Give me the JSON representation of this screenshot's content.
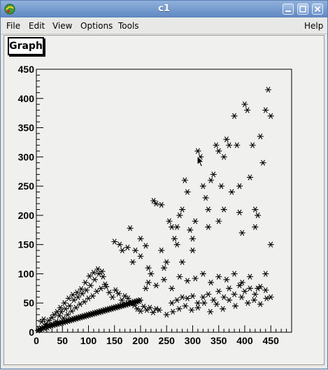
{
  "window": {
    "title": "c1",
    "icon": "root-app-icon",
    "controls": [
      "minimize-icon",
      "maximize-icon",
      "close-icon"
    ]
  },
  "menu": {
    "file": "File",
    "edit": "Edit",
    "view": "View",
    "options": "Options",
    "tools": "Tools",
    "help": "Help"
  },
  "chart_data": {
    "type": "scatter",
    "title": "Graph",
    "marker": "asterisk",
    "marker_color": "#000000",
    "xlim": [
      0,
      490
    ],
    "ylim": [
      0,
      450
    ],
    "xticks": [
      0,
      50,
      100,
      150,
      200,
      250,
      300,
      350,
      400,
      450
    ],
    "yticks": [
      0,
      50,
      100,
      150,
      200,
      250,
      300,
      350,
      400,
      450
    ],
    "xtick_labels": [
      "0",
      "50",
      "100",
      "150",
      "200",
      "250",
      "300",
      "350",
      "400",
      "450"
    ],
    "ytick_labels": [
      "0",
      "50",
      "100",
      "150",
      "200",
      "250",
      "300",
      "350",
      "400",
      "450"
    ],
    "series": [
      {
        "points": [
          [
            3,
            3
          ],
          [
            5,
            5
          ],
          [
            7,
            4
          ],
          [
            9,
            7
          ],
          [
            11,
            6
          ],
          [
            13,
            8
          ],
          [
            15,
            7
          ],
          [
            17,
            9
          ],
          [
            19,
            10
          ],
          [
            21,
            8
          ],
          [
            23,
            11
          ],
          [
            25,
            10
          ],
          [
            27,
            12
          ],
          [
            29,
            11
          ],
          [
            31,
            13
          ],
          [
            33,
            12
          ],
          [
            35,
            14
          ],
          [
            37,
            13
          ],
          [
            39,
            15
          ],
          [
            41,
            14
          ],
          [
            43,
            16
          ],
          [
            45,
            15
          ],
          [
            47,
            17
          ],
          [
            49,
            16
          ],
          [
            51,
            18
          ],
          [
            53,
            17
          ],
          [
            55,
            19
          ],
          [
            57,
            18
          ],
          [
            59,
            20
          ],
          [
            61,
            19
          ],
          [
            63,
            21
          ],
          [
            65,
            20
          ],
          [
            67,
            22
          ],
          [
            69,
            21
          ],
          [
            71,
            23
          ],
          [
            73,
            22
          ],
          [
            75,
            24
          ],
          [
            77,
            23
          ],
          [
            79,
            25
          ],
          [
            81,
            24
          ],
          [
            83,
            26
          ],
          [
            85,
            25
          ],
          [
            87,
            27
          ],
          [
            89,
            26
          ],
          [
            91,
            28
          ],
          [
            93,
            27
          ],
          [
            95,
            29
          ],
          [
            97,
            28
          ],
          [
            99,
            30
          ],
          [
            101,
            29
          ],
          [
            103,
            31
          ],
          [
            105,
            30
          ],
          [
            107,
            32
          ],
          [
            109,
            31
          ],
          [
            111,
            33
          ],
          [
            113,
            32
          ],
          [
            115,
            34
          ],
          [
            117,
            33
          ],
          [
            119,
            35
          ],
          [
            121,
            34
          ],
          [
            123,
            36
          ],
          [
            125,
            35
          ],
          [
            127,
            37
          ],
          [
            129,
            36
          ],
          [
            131,
            38
          ],
          [
            133,
            37
          ],
          [
            135,
            39
          ],
          [
            137,
            38
          ],
          [
            139,
            40
          ],
          [
            141,
            39
          ],
          [
            143,
            41
          ],
          [
            145,
            40
          ],
          [
            147,
            42
          ],
          [
            149,
            41
          ],
          [
            151,
            43
          ],
          [
            153,
            42
          ],
          [
            155,
            44
          ],
          [
            157,
            43
          ],
          [
            159,
            45
          ],
          [
            161,
            44
          ],
          [
            163,
            46
          ],
          [
            165,
            45
          ],
          [
            167,
            47
          ],
          [
            169,
            46
          ],
          [
            171,
            48
          ],
          [
            173,
            47
          ],
          [
            175,
            49
          ],
          [
            177,
            48
          ],
          [
            179,
            50
          ],
          [
            181,
            49
          ],
          [
            183,
            51
          ],
          [
            185,
            50
          ],
          [
            187,
            52
          ],
          [
            189,
            51
          ],
          [
            191,
            53
          ],
          [
            193,
            52
          ],
          [
            195,
            54
          ],
          [
            197,
            53
          ],
          [
            199,
            55
          ],
          [
            10,
            18
          ],
          [
            14,
            22
          ],
          [
            18,
            14
          ],
          [
            24,
            20
          ],
          [
            30,
            25
          ],
          [
            34,
            30
          ],
          [
            38,
            18
          ],
          [
            44,
            28
          ],
          [
            48,
            35
          ],
          [
            52,
            24
          ],
          [
            56,
            40
          ],
          [
            60,
            30
          ],
          [
            64,
            45
          ],
          [
            68,
            36
          ],
          [
            72,
            55
          ],
          [
            76,
            42
          ],
          [
            80,
            60
          ],
          [
            84,
            48
          ],
          [
            88,
            66
          ],
          [
            92,
            52
          ],
          [
            96,
            72
          ],
          [
            100,
            58
          ],
          [
            104,
            80
          ],
          [
            108,
            62
          ],
          [
            112,
            90
          ],
          [
            116,
            70
          ],
          [
            120,
            100
          ],
          [
            124,
            75
          ],
          [
            128,
            95
          ],
          [
            132,
            82
          ],
          [
            40,
            35
          ],
          [
            46,
            42
          ],
          [
            54,
            50
          ],
          [
            62,
            58
          ],
          [
            70,
            64
          ],
          [
            78,
            68
          ],
          [
            86,
            74
          ],
          [
            94,
            85
          ],
          [
            102,
            96
          ],
          [
            110,
            102
          ],
          [
            118,
            108
          ],
          [
            126,
            104
          ],
          [
            134,
            78
          ],
          [
            140,
            68
          ],
          [
            146,
            60
          ],
          [
            152,
            72
          ],
          [
            158,
            66
          ],
          [
            164,
            55
          ],
          [
            170,
            62
          ],
          [
            176,
            58
          ],
          [
            182,
            50
          ],
          [
            188,
            46
          ],
          [
            194,
            40
          ],
          [
            200,
            36
          ],
          [
            206,
            44
          ],
          [
            212,
            38
          ],
          [
            218,
            42
          ],
          [
            224,
            34
          ],
          [
            230,
            40
          ],
          [
            236,
            38
          ],
          [
            150,
            155
          ],
          [
            160,
            150
          ],
          [
            165,
            140
          ],
          [
            175,
            145
          ],
          [
            180,
            178
          ],
          [
            185,
            120
          ],
          [
            190,
            140
          ],
          [
            200,
            130
          ],
          [
            210,
            148
          ],
          [
            215,
            110
          ],
          [
            220,
            100
          ],
          [
            225,
            225
          ],
          [
            230,
            220
          ],
          [
            240,
            218
          ],
          [
            245,
            110
          ],
          [
            250,
            120
          ],
          [
            255,
            190
          ],
          [
            260,
            180
          ],
          [
            265,
            160
          ],
          [
            270,
            150
          ],
          [
            275,
            200
          ],
          [
            280,
            210
          ],
          [
            285,
            260
          ],
          [
            290,
            240
          ],
          [
            295,
            175
          ],
          [
            300,
            160
          ],
          [
            305,
            190
          ],
          [
            310,
            310
          ],
          [
            315,
            300
          ],
          [
            320,
            250
          ],
          [
            325,
            230
          ],
          [
            330,
            180
          ],
          [
            335,
            260
          ],
          [
            340,
            270
          ],
          [
            345,
            320
          ],
          [
            350,
            310
          ],
          [
            355,
            250
          ],
          [
            360,
            300
          ],
          [
            365,
            330
          ],
          [
            370,
            320
          ],
          [
            375,
            240
          ],
          [
            380,
            370
          ],
          [
            385,
            320
          ],
          [
            390,
            250
          ],
          [
            395,
            170
          ],
          [
            400,
            390
          ],
          [
            405,
            380
          ],
          [
            410,
            265
          ],
          [
            415,
            320
          ],
          [
            420,
            210
          ],
          [
            425,
            200
          ],
          [
            430,
            335
          ],
          [
            435,
            290
          ],
          [
            440,
            380
          ],
          [
            445,
            415
          ],
          [
            450,
            370
          ],
          [
            260,
            50
          ],
          [
            270,
            55
          ],
          [
            280,
            60
          ],
          [
            290,
            58
          ],
          [
            300,
            62
          ],
          [
            310,
            50
          ],
          [
            320,
            60
          ],
          [
            330,
            65
          ],
          [
            340,
            55
          ],
          [
            350,
            70
          ],
          [
            360,
            60
          ],
          [
            370,
            75
          ],
          [
            380,
            65
          ],
          [
            390,
            80
          ],
          [
            400,
            70
          ],
          [
            410,
            75
          ],
          [
            420,
            65
          ],
          [
            430,
            78
          ],
          [
            440,
            72
          ],
          [
            450,
            60
          ],
          [
            250,
            30
          ],
          [
            262,
            35
          ],
          [
            274,
            40
          ],
          [
            286,
            45
          ],
          [
            298,
            38
          ],
          [
            310,
            42
          ],
          [
            322,
            50
          ],
          [
            334,
            35
          ],
          [
            346,
            48
          ],
          [
            358,
            40
          ],
          [
            370,
            55
          ],
          [
            382,
            45
          ],
          [
            394,
            60
          ],
          [
            406,
            50
          ],
          [
            418,
            55
          ],
          [
            430,
            48
          ],
          [
            442,
            58
          ],
          [
            215,
            85
          ],
          [
            230,
            80
          ],
          [
            245,
            90
          ],
          [
            260,
            75
          ],
          [
            275,
            95
          ],
          [
            290,
            88
          ],
          [
            305,
            92
          ],
          [
            320,
            100
          ],
          [
            335,
            85
          ],
          [
            350,
            95
          ],
          [
            365,
            90
          ],
          [
            380,
            100
          ],
          [
            395,
            85
          ],
          [
            410,
            95
          ],
          [
            425,
            75
          ],
          [
            440,
            100
          ],
          [
            200,
            160
          ],
          [
            240,
            140
          ],
          [
            270,
            180
          ],
          [
            300,
            140
          ],
          [
            330,
            210
          ],
          [
            360,
            210
          ],
          [
            390,
            205
          ],
          [
            420,
            180
          ],
          [
            450,
            150
          ],
          [
            210,
            75
          ],
          [
            280,
            120
          ],
          [
            350,
            190
          ]
        ]
      }
    ]
  }
}
